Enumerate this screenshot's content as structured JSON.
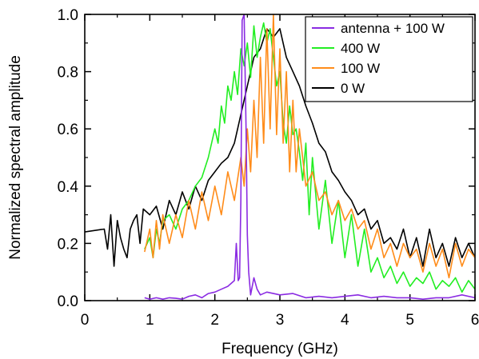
{
  "chart_data": {
    "type": "line",
    "title": "",
    "xlabel": "Frequency (GHz)",
    "ylabel": "Normalized spectral amplitude",
    "xlim": [
      0,
      6
    ],
    "ylim": [
      0,
      1.0
    ],
    "x_ticks": [
      "0",
      "1",
      "2",
      "3",
      "4",
      "5",
      "6"
    ],
    "y_ticks": [
      "0.0",
      "0.2",
      "0.4",
      "0.6",
      "0.8",
      "1.0"
    ],
    "legend_position": "top-right",
    "grid": false,
    "series": [
      {
        "name": "antenna + 100 W",
        "color": "#8a2be2",
        "x": [
          0.92,
          1.0,
          1.1,
          1.2,
          1.3,
          1.4,
          1.5,
          1.6,
          1.7,
          1.8,
          1.9,
          2.0,
          2.1,
          2.2,
          2.25,
          2.3,
          2.33,
          2.36,
          2.38,
          2.4,
          2.42,
          2.45,
          2.48,
          2.5,
          2.52,
          2.55,
          2.6,
          2.65,
          2.7,
          2.8,
          3.0,
          3.2,
          3.4,
          3.6,
          3.8,
          4.0,
          4.2,
          4.4,
          4.6,
          4.8,
          5.0,
          5.2,
          5.4,
          5.6,
          5.8,
          6.0
        ],
        "y": [
          0.01,
          0.005,
          0.01,
          0.005,
          0.01,
          0.008,
          0.005,
          0.015,
          0.02,
          0.01,
          0.025,
          0.03,
          0.04,
          0.05,
          0.06,
          0.07,
          0.2,
          0.07,
          0.08,
          0.35,
          0.98,
          1.0,
          0.6,
          0.23,
          0.1,
          0.02,
          0.08,
          0.04,
          0.02,
          0.03,
          0.02,
          0.025,
          0.01,
          0.015,
          0.01,
          0.015,
          0.02,
          0.01,
          0.015,
          0.01,
          0.01,
          0.005,
          0.01,
          0.01,
          0.02,
          0.01
        ]
      },
      {
        "name": "400 W",
        "color": "#22ee22",
        "x": [
          0.92,
          1.0,
          1.05,
          1.1,
          1.15,
          1.2,
          1.3,
          1.4,
          1.5,
          1.6,
          1.7,
          1.8,
          1.9,
          2.0,
          2.05,
          2.1,
          2.15,
          2.2,
          2.25,
          2.3,
          2.35,
          2.4,
          2.45,
          2.5,
          2.55,
          2.6,
          2.65,
          2.7,
          2.75,
          2.8,
          2.85,
          2.9,
          2.95,
          3.0,
          3.05,
          3.1,
          3.15,
          3.2,
          3.25,
          3.3,
          3.35,
          3.4,
          3.45,
          3.5,
          3.6,
          3.7,
          3.8,
          3.9,
          4.0,
          4.1,
          4.2,
          4.3,
          4.4,
          4.5,
          4.6,
          4.7,
          4.8,
          4.9,
          5.0,
          5.1,
          5.2,
          5.3,
          5.4,
          5.5,
          5.6,
          5.7,
          5.8,
          5.9,
          6.0
        ],
        "y": [
          0.18,
          0.22,
          0.15,
          0.25,
          0.2,
          0.28,
          0.3,
          0.25,
          0.32,
          0.35,
          0.4,
          0.43,
          0.5,
          0.6,
          0.55,
          0.68,
          0.62,
          0.75,
          0.7,
          0.8,
          0.72,
          0.88,
          0.82,
          0.9,
          0.78,
          0.96,
          0.85,
          0.92,
          0.97,
          0.9,
          0.95,
          0.85,
          0.75,
          0.8,
          0.62,
          0.55,
          0.68,
          0.58,
          0.6,
          0.52,
          0.42,
          0.55,
          0.3,
          0.5,
          0.25,
          0.42,
          0.2,
          0.35,
          0.15,
          0.3,
          0.12,
          0.25,
          0.1,
          0.15,
          0.08,
          0.12,
          0.06,
          0.1,
          0.05,
          0.08,
          0.06,
          0.1,
          0.04,
          0.07,
          0.05,
          0.08,
          0.03,
          0.07,
          0.04
        ]
      },
      {
        "name": "100 W",
        "color": "#ff8c1a",
        "x": [
          0.92,
          1.0,
          1.05,
          1.1,
          1.15,
          1.2,
          1.3,
          1.4,
          1.5,
          1.6,
          1.7,
          1.8,
          1.9,
          2.0,
          2.1,
          2.2,
          2.3,
          2.4,
          2.45,
          2.5,
          2.55,
          2.6,
          2.65,
          2.7,
          2.75,
          2.8,
          2.85,
          2.9,
          2.95,
          3.0,
          3.05,
          3.1,
          3.15,
          3.2,
          3.25,
          3.3,
          3.4,
          3.5,
          3.6,
          3.7,
          3.8,
          3.9,
          4.0,
          4.1,
          4.2,
          4.3,
          4.4,
          4.5,
          4.6,
          4.7,
          4.8,
          4.9,
          5.0,
          5.1,
          5.2,
          5.3,
          5.4,
          5.5,
          5.6,
          5.7,
          5.8,
          5.9,
          6.0
        ],
        "y": [
          0.17,
          0.25,
          0.15,
          0.28,
          0.18,
          0.3,
          0.2,
          0.3,
          0.22,
          0.35,
          0.25,
          0.38,
          0.28,
          0.4,
          0.3,
          0.45,
          0.35,
          0.5,
          0.4,
          0.6,
          0.45,
          0.7,
          0.5,
          0.85,
          0.55,
          0.95,
          0.6,
          1.0,
          0.58,
          0.88,
          0.55,
          0.8,
          0.45,
          0.7,
          0.45,
          0.6,
          0.4,
          0.45,
          0.35,
          0.38,
          0.3,
          0.35,
          0.28,
          0.32,
          0.25,
          0.28,
          0.18,
          0.25,
          0.15,
          0.2,
          0.12,
          0.2,
          0.15,
          0.18,
          0.1,
          0.2,
          0.12,
          0.18,
          0.08,
          0.2,
          0.12,
          0.18,
          0.15
        ]
      },
      {
        "name": "0 W",
        "color": "#000000",
        "x": [
          0.0,
          0.3,
          0.35,
          0.4,
          0.45,
          0.5,
          0.55,
          0.6,
          0.65,
          0.7,
          0.75,
          0.8,
          0.85,
          0.9,
          1.0,
          1.1,
          1.2,
          1.3,
          1.4,
          1.5,
          1.6,
          1.7,
          1.8,
          1.9,
          2.0,
          2.1,
          2.2,
          2.3,
          2.4,
          2.5,
          2.6,
          2.7,
          2.8,
          2.9,
          3.0,
          3.1,
          3.2,
          3.3,
          3.4,
          3.5,
          3.6,
          3.7,
          3.8,
          3.9,
          4.0,
          4.1,
          4.2,
          4.3,
          4.4,
          4.5,
          4.6,
          4.7,
          4.8,
          4.9,
          5.0,
          5.1,
          5.2,
          5.3,
          5.4,
          5.5,
          5.6,
          5.7,
          5.8,
          5.9,
          6.0
        ],
        "y": [
          0.24,
          0.25,
          0.18,
          0.3,
          0.12,
          0.28,
          0.22,
          0.18,
          0.15,
          0.25,
          0.28,
          0.3,
          0.2,
          0.32,
          0.3,
          0.33,
          0.25,
          0.35,
          0.3,
          0.38,
          0.32,
          0.4,
          0.35,
          0.42,
          0.45,
          0.48,
          0.5,
          0.55,
          0.65,
          0.75,
          0.85,
          0.88,
          0.95,
          0.92,
          0.95,
          0.85,
          0.8,
          0.75,
          0.68,
          0.62,
          0.55,
          0.52,
          0.45,
          0.42,
          0.38,
          0.35,
          0.3,
          0.32,
          0.25,
          0.28,
          0.2,
          0.22,
          0.18,
          0.25,
          0.15,
          0.22,
          0.12,
          0.25,
          0.15,
          0.2,
          0.12,
          0.22,
          0.15,
          0.2,
          0.15
        ]
      }
    ]
  }
}
